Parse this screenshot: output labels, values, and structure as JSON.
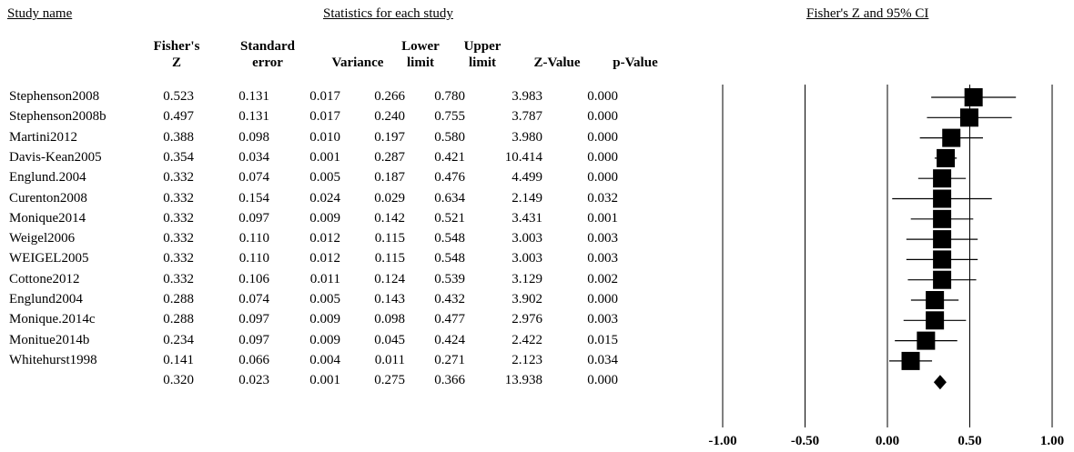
{
  "headers": {
    "study_name": "Study name",
    "statistics": "Statistics for each study",
    "plot_title": "Fisher's Z and 95% CI"
  },
  "columns": [
    {
      "line1": "Fisher's",
      "line2": "Z"
    },
    {
      "line1": "Standard",
      "line2": "error"
    },
    {
      "line1": "",
      "line2": "Variance"
    },
    {
      "line1": "Lower",
      "line2": "limit"
    },
    {
      "line1": "Upper",
      "line2": "limit"
    },
    {
      "line1": "",
      "line2": "Z-Value"
    },
    {
      "line1": "",
      "line2": "p-Value"
    }
  ],
  "studies": [
    {
      "name": "Stephenson2008",
      "z": "0.523",
      "se": "0.131",
      "var": "0.017",
      "lower": "0.266",
      "upper": "0.780",
      "zval": "3.983",
      "p": "0.000"
    },
    {
      "name": "Stephenson2008b",
      "z": "0.497",
      "se": "0.131",
      "var": "0.017",
      "lower": "0.240",
      "upper": "0.755",
      "zval": "3.787",
      "p": "0.000"
    },
    {
      "name": "Martini2012",
      "z": "0.388",
      "se": "0.098",
      "var": "0.010",
      "lower": "0.197",
      "upper": "0.580",
      "zval": "3.980",
      "p": "0.000"
    },
    {
      "name": "Davis-Kean2005",
      "z": "0.354",
      "se": "0.034",
      "var": "0.001",
      "lower": "0.287",
      "upper": "0.421",
      "zval": "10.414",
      "p": "0.000"
    },
    {
      "name": "Englund.2004",
      "z": "0.332",
      "se": "0.074",
      "var": "0.005",
      "lower": "0.187",
      "upper": "0.476",
      "zval": "4.499",
      "p": "0.000"
    },
    {
      "name": "Curenton2008",
      "z": "0.332",
      "se": "0.154",
      "var": "0.024",
      "lower": "0.029",
      "upper": "0.634",
      "zval": "2.149",
      "p": "0.032"
    },
    {
      "name": "Monique2014",
      "z": "0.332",
      "se": "0.097",
      "var": "0.009",
      "lower": "0.142",
      "upper": "0.521",
      "zval": "3.431",
      "p": "0.001"
    },
    {
      "name": "Weigel2006",
      "z": "0.332",
      "se": "0.110",
      "var": "0.012",
      "lower": "0.115",
      "upper": "0.548",
      "zval": "3.003",
      "p": "0.003"
    },
    {
      "name": "WEIGEL2005",
      "z": "0.332",
      "se": "0.110",
      "var": "0.012",
      "lower": "0.115",
      "upper": "0.548",
      "zval": "3.003",
      "p": "0.003"
    },
    {
      "name": "Cottone2012",
      "z": "0.332",
      "se": "0.106",
      "var": "0.011",
      "lower": "0.124",
      "upper": "0.539",
      "zval": "3.129",
      "p": "0.002"
    },
    {
      "name": "Englund2004",
      "z": "0.288",
      "se": "0.074",
      "var": "0.005",
      "lower": "0.143",
      "upper": "0.432",
      "zval": "3.902",
      "p": "0.000"
    },
    {
      "name": "Monique.2014c",
      "z": "0.288",
      "se": "0.097",
      "var": "0.009",
      "lower": "0.098",
      "upper": "0.477",
      "zval": "2.976",
      "p": "0.003"
    },
    {
      "name": "Monitue2014b",
      "z": "0.234",
      "se": "0.097",
      "var": "0.009",
      "lower": "0.045",
      "upper": "0.424",
      "zval": "2.422",
      "p": "0.015"
    },
    {
      "name": "Whitehurst1998",
      "z": "0.141",
      "se": "0.066",
      "var": "0.004",
      "lower": "0.011",
      "upper": "0.271",
      "zval": "2.123",
      "p": "0.034"
    }
  ],
  "summary": {
    "name": "",
    "z": "0.320",
    "se": "0.023",
    "var": "0.001",
    "lower": "0.275",
    "upper": "0.366",
    "zval": "13.938",
    "p": "0.000"
  },
  "chart_data": {
    "type": "forest",
    "title": "Fisher's Z and 95% CI",
    "xlim": [
      -1.0,
      1.0
    ],
    "xticks": [
      "-1.00",
      "-0.50",
      "0.00",
      "0.50",
      "1.00"
    ],
    "xtick_values": [
      -1.0,
      -0.5,
      0.0,
      0.5,
      1.0
    ],
    "marker_color": "#000000",
    "studies": [
      {
        "name": "Stephenson2008",
        "effect": 0.523,
        "lower": 0.266,
        "upper": 0.78
      },
      {
        "name": "Stephenson2008b",
        "effect": 0.497,
        "lower": 0.24,
        "upper": 0.755
      },
      {
        "name": "Martini2012",
        "effect": 0.388,
        "lower": 0.197,
        "upper": 0.58
      },
      {
        "name": "Davis-Kean2005",
        "effect": 0.354,
        "lower": 0.287,
        "upper": 0.421
      },
      {
        "name": "Englund.2004",
        "effect": 0.332,
        "lower": 0.187,
        "upper": 0.476
      },
      {
        "name": "Curenton2008",
        "effect": 0.332,
        "lower": 0.029,
        "upper": 0.634
      },
      {
        "name": "Monique2014",
        "effect": 0.332,
        "lower": 0.142,
        "upper": 0.521
      },
      {
        "name": "Weigel2006",
        "effect": 0.332,
        "lower": 0.115,
        "upper": 0.548
      },
      {
        "name": "WEIGEL2005",
        "effect": 0.332,
        "lower": 0.115,
        "upper": 0.548
      },
      {
        "name": "Cottone2012",
        "effect": 0.332,
        "lower": 0.124,
        "upper": 0.539
      },
      {
        "name": "Englund2004",
        "effect": 0.288,
        "lower": 0.143,
        "upper": 0.432
      },
      {
        "name": "Monique.2014c",
        "effect": 0.288,
        "lower": 0.098,
        "upper": 0.477
      },
      {
        "name": "Monitue2014b",
        "effect": 0.234,
        "lower": 0.045,
        "upper": 0.424
      },
      {
        "name": "Whitehurst1998",
        "effect": 0.141,
        "lower": 0.011,
        "upper": 0.271
      }
    ],
    "summary": {
      "effect": 0.32,
      "lower": 0.275,
      "upper": 0.366
    }
  }
}
